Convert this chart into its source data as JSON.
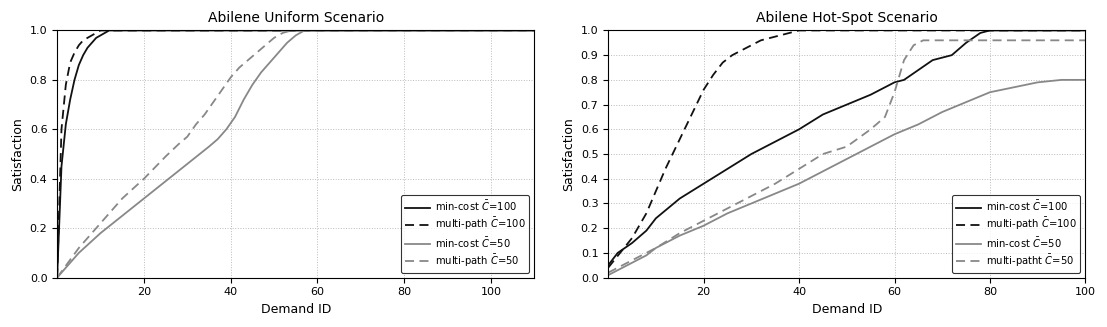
{
  "title_left": "Abilene Uniform Scenario",
  "title_right": "Abilene Hot-Spot Scenario",
  "xlabel": "Demand ID",
  "ylabel": "Satisfaction",
  "legend_labels_left": [
    "min-cost $\\bar{C}$=100",
    "multi-path $\\bar{C}$=100",
    "min-cost $\\bar{C}$=50",
    "multi-path $\\bar{C}$=50"
  ],
  "legend_labels_right": [
    "min-cost $\\bar{C}$=100",
    "multi-path $\\bar{C}$=100",
    "min-cost $\\bar{C}$=50",
    "multi-patht $\\bar{C}$=50"
  ],
  "color_dark": "#111111",
  "color_gray": "#888888",
  "xlim_left": [
    0,
    110
  ],
  "xlim_right": [
    0,
    100
  ],
  "ylim": [
    0,
    1.0
  ],
  "xticks_left": [
    20,
    40,
    60,
    80,
    100
  ],
  "xticks_right": [
    20,
    40,
    60,
    80,
    100
  ],
  "yticks_left": [
    0,
    0.2,
    0.4,
    0.6,
    0.8,
    1.0
  ],
  "yticks_right": [
    0,
    0.1,
    0.2,
    0.3,
    0.4,
    0.5,
    0.6,
    0.7,
    0.8,
    0.9,
    1.0
  ],
  "linewidth": 1.3,
  "grid_color": "#bbbbbb",
  "grid_style": ":",
  "left_mincost100_x": [
    0,
    1,
    2,
    3,
    4,
    5,
    6,
    7,
    8,
    9,
    10,
    11,
    12,
    13,
    14,
    15,
    16,
    17,
    18,
    110
  ],
  "left_mincost100_y": [
    0,
    0.45,
    0.62,
    0.72,
    0.8,
    0.86,
    0.9,
    0.93,
    0.95,
    0.97,
    0.98,
    0.99,
    1.0,
    1.0,
    1.0,
    1.0,
    1.0,
    1.0,
    1.0,
    1.0
  ],
  "left_multipath100_x": [
    0,
    1,
    2,
    3,
    4,
    5,
    6,
    7,
    8,
    9,
    10,
    11,
    12,
    110
  ],
  "left_multipath100_y": [
    0,
    0.6,
    0.78,
    0.87,
    0.91,
    0.94,
    0.96,
    0.97,
    0.98,
    0.99,
    1.0,
    1.0,
    1.0,
    1.0
  ],
  "left_mincost50_x": [
    0,
    5,
    10,
    15,
    20,
    25,
    30,
    35,
    37,
    39,
    41,
    43,
    45,
    47,
    49,
    51,
    53,
    55,
    57,
    60,
    110
  ],
  "left_mincost50_y": [
    0,
    0.1,
    0.18,
    0.25,
    0.32,
    0.39,
    0.46,
    0.53,
    0.56,
    0.6,
    0.65,
    0.72,
    0.78,
    0.83,
    0.87,
    0.91,
    0.95,
    0.98,
    1.0,
    1.0,
    1.0
  ],
  "left_multipath50_x": [
    0,
    5,
    10,
    15,
    20,
    25,
    28,
    30,
    32,
    34,
    36,
    38,
    40,
    42,
    44,
    46,
    48,
    50,
    52,
    54,
    56,
    58,
    60,
    110
  ],
  "left_multipath50_y": [
    0,
    0.12,
    0.22,
    0.32,
    0.4,
    0.49,
    0.54,
    0.57,
    0.62,
    0.66,
    0.71,
    0.76,
    0.81,
    0.85,
    0.88,
    0.91,
    0.94,
    0.97,
    0.99,
    1.0,
    1.0,
    1.0,
    1.0,
    1.0
  ],
  "right_mincost100_x": [
    0,
    2,
    5,
    8,
    10,
    15,
    20,
    25,
    30,
    35,
    40,
    45,
    50,
    55,
    60,
    62,
    65,
    68,
    70,
    72,
    75,
    78,
    80,
    100
  ],
  "right_mincost100_y": [
    0.05,
    0.1,
    0.14,
    0.19,
    0.24,
    0.32,
    0.38,
    0.44,
    0.5,
    0.55,
    0.6,
    0.66,
    0.7,
    0.74,
    0.79,
    0.8,
    0.84,
    0.88,
    0.89,
    0.9,
    0.95,
    0.99,
    1.0,
    1.0
  ],
  "right_multipath100_x": [
    0,
    5,
    8,
    10,
    12,
    15,
    18,
    20,
    22,
    24,
    26,
    28,
    30,
    32,
    34,
    36,
    38,
    40,
    42,
    44,
    46,
    48,
    50,
    100
  ],
  "right_multipath100_y": [
    0.04,
    0.16,
    0.26,
    0.35,
    0.44,
    0.56,
    0.68,
    0.76,
    0.82,
    0.87,
    0.9,
    0.92,
    0.94,
    0.96,
    0.97,
    0.98,
    0.99,
    1.0,
    1.0,
    1.0,
    1.0,
    1.0,
    1.0,
    1.0
  ],
  "right_mincost50_x": [
    0,
    2,
    5,
    8,
    10,
    15,
    20,
    25,
    30,
    35,
    40,
    45,
    50,
    55,
    60,
    65,
    70,
    75,
    80,
    85,
    90,
    95,
    100
  ],
  "right_mincost50_y": [
    0.01,
    0.03,
    0.06,
    0.09,
    0.12,
    0.17,
    0.21,
    0.26,
    0.3,
    0.34,
    0.38,
    0.43,
    0.48,
    0.53,
    0.58,
    0.62,
    0.67,
    0.71,
    0.75,
    0.77,
    0.79,
    0.8,
    0.8
  ],
  "right_multipath50_x": [
    0,
    5,
    10,
    15,
    20,
    25,
    30,
    35,
    40,
    45,
    50,
    55,
    58,
    60,
    62,
    64,
    66,
    68,
    70,
    100
  ],
  "right_multipath50_y": [
    0.02,
    0.07,
    0.12,
    0.18,
    0.23,
    0.28,
    0.33,
    0.38,
    0.44,
    0.5,
    0.53,
    0.6,
    0.65,
    0.75,
    0.88,
    0.94,
    0.96,
    0.96,
    0.96,
    0.96
  ]
}
